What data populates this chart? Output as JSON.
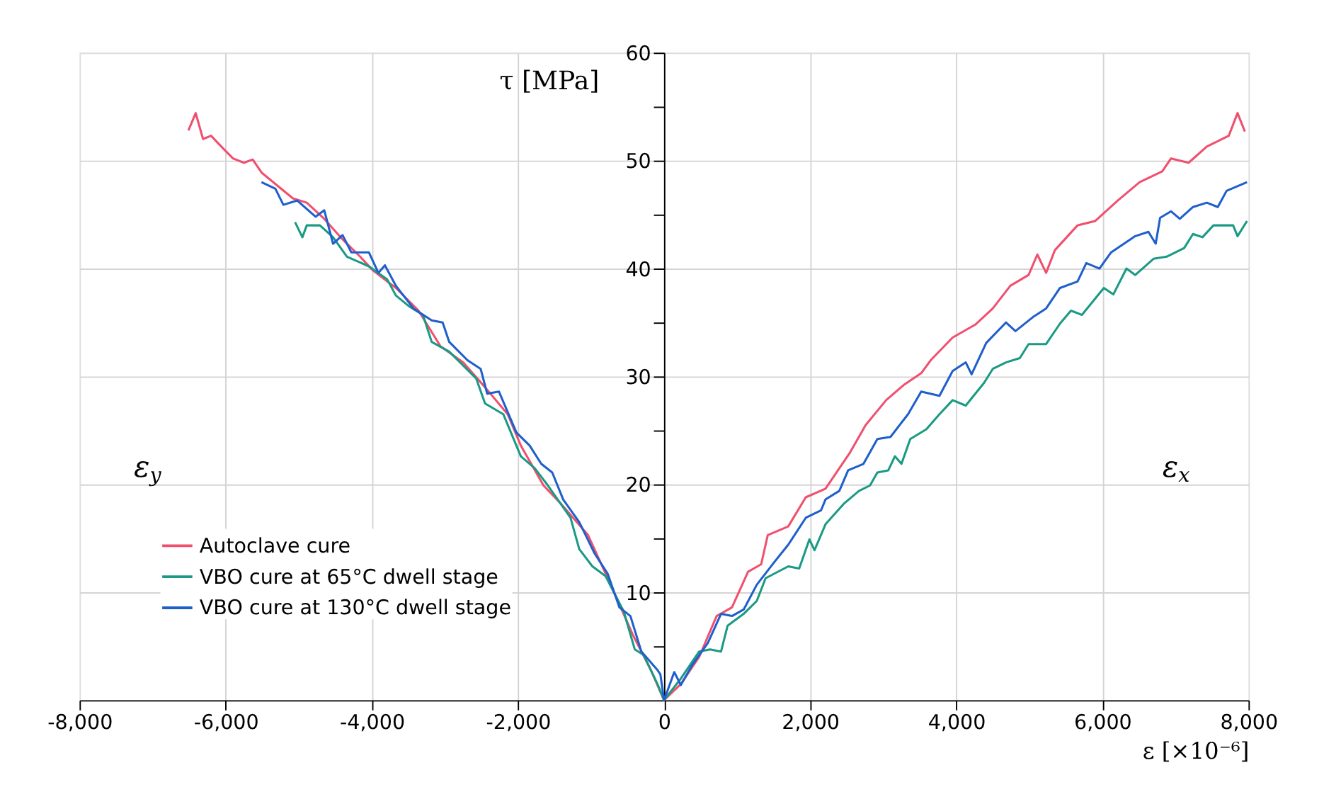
{
  "chart_data": {
    "type": "line",
    "xlabel": "ε [×10⁻⁶]",
    "ylabel": "τ [MPa]",
    "xlim": [
      -8000,
      8000
    ],
    "xticks": [
      {
        "value": -8000,
        "label": "-8,000"
      },
      {
        "value": -6000,
        "label": "-6,000"
      },
      {
        "value": -4000,
        "label": "-4,000"
      },
      {
        "value": -2000,
        "label": "-2,000"
      },
      0,
      {
        "value": 2000,
        "label": "2,000"
      },
      {
        "value": 4000,
        "label": "4,000"
      },
      {
        "value": 6000,
        "label": "6,000"
      },
      {
        "value": 8000,
        "label": "8,000"
      }
    ],
    "ylim": [
      0,
      60
    ],
    "yticks": [
      {
        "value": 5,
        "label": null
      },
      10,
      {
        "value": 15,
        "label": null
      },
      20,
      {
        "value": 25,
        "label": null
      },
      30,
      {
        "value": 35,
        "label": null
      },
      40,
      {
        "value": 45,
        "label": null
      },
      50,
      {
        "value": 55,
        "label": null
      },
      60
    ],
    "grid": true,
    "legend": "bottom left",
    "line_style": "solid",
    "marker": "none",
    "annotations": [
      "ε$_{y}$",
      "ε$_{x}$"
    ],
    "series": [
      {
        "name": "Autoclave cure",
        "color": "#f0506e",
        "x": [
          -6510,
          -6410,
          -6310,
          -6200,
          -6060,
          -5900,
          -5750,
          -5630,
          -5510,
          -5260,
          -5080,
          -4890,
          -4650,
          -4400,
          -4160,
          -3980,
          -3670,
          -3360,
          -3060,
          -2750,
          -2450,
          -2140,
          -1960,
          -1650,
          -1410,
          -1040,
          -730,
          -430,
          -180,
          0,
          230,
          480,
          720,
          930,
          1150,
          1330,
          1420,
          1700,
          1940,
          2210,
          2550,
          2760,
          3040,
          3280,
          3520,
          3650,
          3950,
          4260,
          4500,
          4740,
          4990,
          5110,
          5230,
          5350,
          5660,
          5900,
          6210,
          6510,
          6820,
          6940,
          7180,
          7430,
          7730,
          7850,
          7950
        ],
        "values": [
          52.8,
          54.4,
          52.0,
          52.3,
          51.3,
          50.2,
          49.8,
          50.1,
          48.9,
          47.5,
          46.5,
          46.1,
          44.6,
          42.7,
          41.1,
          39.8,
          38.2,
          36.1,
          32.8,
          31.3,
          29.0,
          26.5,
          23.6,
          19.9,
          18.2,
          15.3,
          10.7,
          6.1,
          2.8,
          0,
          1.5,
          4.0,
          7.8,
          8.6,
          11.9,
          12.6,
          15.3,
          16.1,
          18.8,
          19.6,
          23.0,
          25.5,
          27.8,
          29.2,
          30.3,
          31.5,
          33.6,
          34.8,
          36.3,
          38.4,
          39.4,
          41.3,
          39.6,
          41.7,
          44.0,
          44.4,
          46.3,
          48.0,
          49.0,
          50.2,
          49.8,
          51.3,
          52.3,
          54.4,
          52.7
        ]
      },
      {
        "name": "VBO cure at 65°C dwell stage",
        "color": "#1a9a84",
        "x": [
          -5050,
          -4950,
          -4890,
          -4710,
          -4530,
          -4340,
          -4040,
          -3790,
          -3670,
          -3490,
          -3300,
          -3180,
          -2940,
          -2570,
          -2450,
          -2200,
          -1960,
          -1770,
          -1590,
          -1280,
          -1160,
          -980,
          -800,
          -550,
          -400,
          -280,
          -90,
          0,
          230,
          480,
          630,
          780,
          870,
          1090,
          1270,
          1390,
          1700,
          1850,
          1990,
          2060,
          2210,
          2460,
          2670,
          2820,
          2920,
          3070,
          3160,
          3250,
          3370,
          3590,
          3770,
          3950,
          4130,
          4380,
          4500,
          4680,
          4870,
          4990,
          5230,
          5420,
          5570,
          5720,
          6020,
          6150,
          6330,
          6450,
          6700,
          6880,
          7120,
          7240,
          7370,
          7520,
          7790,
          7850,
          7980
        ],
        "values": [
          44.3,
          42.9,
          44.0,
          44.0,
          42.9,
          41.1,
          40.2,
          39.0,
          37.5,
          36.5,
          35.7,
          33.2,
          32.3,
          29.8,
          27.5,
          26.5,
          22.6,
          21.5,
          19.9,
          16.9,
          14.0,
          12.4,
          11.5,
          8.2,
          4.7,
          4.2,
          1.5,
          0,
          2.0,
          4.5,
          4.7,
          4.5,
          6.9,
          8.0,
          9.2,
          11.3,
          12.4,
          12.2,
          14.9,
          13.9,
          16.3,
          18.2,
          19.4,
          19.9,
          21.1,
          21.3,
          22.6,
          21.9,
          24.2,
          25.1,
          26.5,
          27.8,
          27.3,
          29.4,
          30.7,
          31.3,
          31.7,
          33.0,
          33.0,
          34.9,
          36.1,
          35.7,
          38.2,
          37.6,
          40.0,
          39.4,
          40.9,
          41.1,
          41.9,
          43.2,
          42.9,
          44.0,
          44.0,
          43.0,
          44.4
        ]
      },
      {
        "name": "VBO cure at 130°C dwell stage",
        "color": "#1f5fcc",
        "x": [
          -5510,
          -5320,
          -5210,
          -5020,
          -4770,
          -4650,
          -4530,
          -4400,
          -4280,
          -4040,
          -3910,
          -3820,
          -3670,
          -3430,
          -3180,
          -3030,
          -2940,
          -2690,
          -2510,
          -2420,
          -2260,
          -2020,
          -1840,
          -1680,
          -1530,
          -1380,
          -1160,
          -950,
          -770,
          -610,
          -460,
          -310,
          -90,
          -50,
          0,
          140,
          230,
          380,
          600,
          780,
          930,
          1090,
          1270,
          1510,
          1700,
          1940,
          2150,
          2210,
          2400,
          2520,
          2730,
          2920,
          3100,
          3340,
          3520,
          3770,
          3950,
          4130,
          4210,
          4410,
          4680,
          4810,
          5050,
          5230,
          5420,
          5660,
          5780,
          5960,
          6120,
          6450,
          6630,
          6730,
          6790,
          6940,
          7060,
          7240,
          7430,
          7580,
          7700,
          7980
        ],
        "values": [
          48.0,
          47.4,
          45.9,
          46.3,
          44.8,
          45.4,
          42.3,
          43.1,
          41.5,
          41.5,
          39.6,
          40.3,
          38.4,
          36.3,
          35.2,
          35.0,
          33.2,
          31.5,
          30.7,
          28.4,
          28.6,
          24.8,
          23.6,
          21.9,
          21.1,
          18.6,
          16.5,
          13.6,
          11.7,
          8.6,
          7.8,
          4.5,
          2.8,
          2.4,
          0,
          2.6,
          1.4,
          3.2,
          5.3,
          8.0,
          7.8,
          8.4,
          10.7,
          12.8,
          14.4,
          16.9,
          17.6,
          18.6,
          19.4,
          21.3,
          21.9,
          24.2,
          24.4,
          26.5,
          28.6,
          28.2,
          30.5,
          31.3,
          30.2,
          33.1,
          35.0,
          34.2,
          35.5,
          36.3,
          38.2,
          38.8,
          40.5,
          40.0,
          41.5,
          43.0,
          43.4,
          42.3,
          44.7,
          45.3,
          44.6,
          45.7,
          46.1,
          45.7,
          47.2,
          48.0
        ]
      }
    ]
  }
}
